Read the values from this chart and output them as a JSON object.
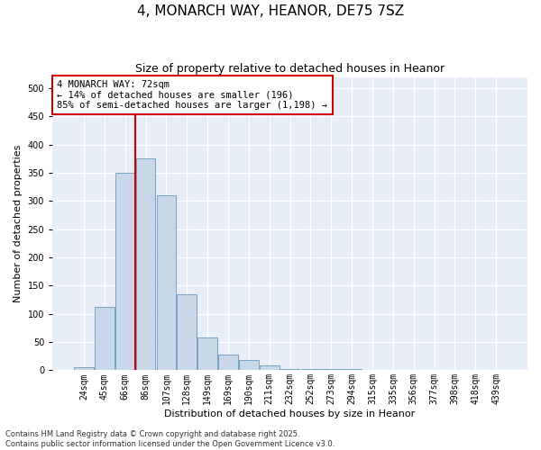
{
  "title": "4, MONARCH WAY, HEANOR, DE75 7SZ",
  "subtitle": "Size of property relative to detached houses in Heanor",
  "xlabel": "Distribution of detached houses by size in Heanor",
  "ylabel": "Number of detached properties",
  "bar_color": "#c8d8e8",
  "bar_edge_color": "#6699bb",
  "background_color": "#e8eef8",
  "grid_color": "#ffffff",
  "categories": [
    "24sqm",
    "45sqm",
    "66sqm",
    "86sqm",
    "107sqm",
    "128sqm",
    "149sqm",
    "169sqm",
    "190sqm",
    "211sqm",
    "232sqm",
    "252sqm",
    "273sqm",
    "294sqm",
    "315sqm",
    "335sqm",
    "356sqm",
    "377sqm",
    "398sqm",
    "418sqm",
    "439sqm"
  ],
  "values": [
    5,
    113,
    350,
    375,
    310,
    135,
    58,
    28,
    18,
    8,
    3,
    3,
    3,
    2,
    1,
    0,
    0,
    0,
    1,
    0,
    1
  ],
  "property_line_color": "#cc0000",
  "property_line_x": 2.5,
  "annotation_text": "4 MONARCH WAY: 72sqm\n← 14% of detached houses are smaller (196)\n85% of semi-detached houses are larger (1,198) →",
  "ylim": [
    0,
    520
  ],
  "yticks": [
    0,
    50,
    100,
    150,
    200,
    250,
    300,
    350,
    400,
    450,
    500
  ],
  "footer_text": "Contains HM Land Registry data © Crown copyright and database right 2025.\nContains public sector information licensed under the Open Government Licence v3.0.",
  "title_fontsize": 11,
  "subtitle_fontsize": 9,
  "axis_label_fontsize": 8,
  "tick_fontsize": 7,
  "annotation_fontsize": 7.5,
  "footer_fontsize": 6
}
